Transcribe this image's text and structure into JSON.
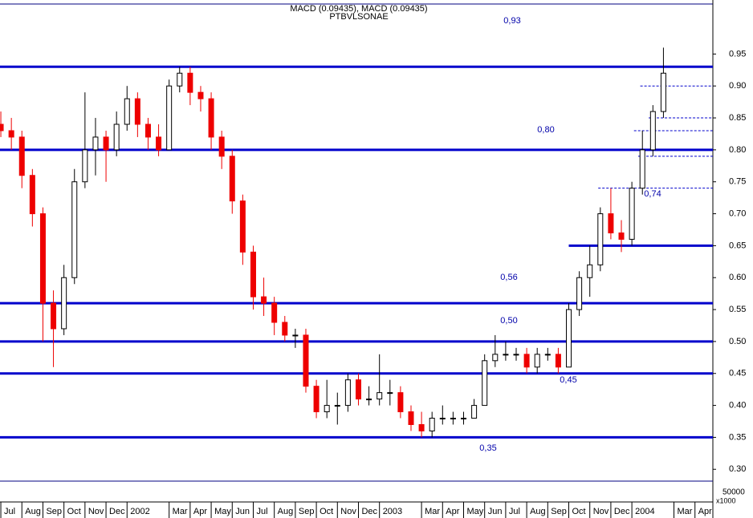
{
  "chart_data": {
    "type": "candlestick",
    "title": "MACD (0.09435), MACD (0.09435)",
    "subtitle": "PTBVLSONAE",
    "xlim": [
      -0.04,
      33.85
    ],
    "ylim": [
      0.284,
      1.022
    ],
    "yticks": [
      0.95,
      {
        "value": 0.9,
        "label": "0.90"
      },
      0.85,
      {
        "value": 0.8,
        "label": "0.80"
      },
      0.75,
      {
        "value": 0.7,
        "label": "0.70"
      },
      0.65,
      {
        "value": 0.6,
        "label": "0.60"
      },
      0.55,
      {
        "value": 0.5,
        "label": "0.50"
      },
      0.45,
      {
        "value": 0.4,
        "label": "0.40"
      },
      0.35,
      {
        "value": 0.3,
        "label": "0.30"
      }
    ],
    "xticks": [
      {
        "value": 0,
        "label": "Jul"
      },
      {
        "value": 1,
        "label": "Aug"
      },
      {
        "value": 2,
        "label": "Sep"
      },
      {
        "value": 3,
        "label": "Oct"
      },
      {
        "value": 4,
        "label": "Nov"
      },
      {
        "value": 5,
        "label": "Dec"
      },
      {
        "value": 6,
        "label": "2002"
      },
      {
        "value": 8,
        "label": "Mar"
      },
      {
        "value": 9,
        "label": "Apr"
      },
      {
        "value": 10,
        "label": "May"
      },
      {
        "value": 11,
        "label": "Jun"
      },
      {
        "value": 12,
        "label": "Jul"
      },
      {
        "value": 13,
        "label": "Aug"
      },
      {
        "value": 14,
        "label": "Sep"
      },
      {
        "value": 15,
        "label": "Oct"
      },
      {
        "value": 16,
        "label": "Nov"
      },
      {
        "value": 17,
        "label": "Dec"
      },
      {
        "value": 18,
        "label": "2003"
      },
      {
        "value": 20,
        "label": "Mar"
      },
      {
        "value": 21,
        "label": "Apr"
      },
      {
        "value": 22,
        "label": "May"
      },
      {
        "value": 23,
        "label": "Jun"
      },
      {
        "value": 24,
        "label": "Jul"
      },
      {
        "value": 25,
        "label": "Aug"
      },
      {
        "value": 26,
        "label": "Sep"
      },
      {
        "value": 27,
        "label": "Oct"
      },
      {
        "value": 28,
        "label": "Nov"
      },
      {
        "value": 29,
        "label": "Dec"
      },
      {
        "value": 30,
        "label": "2004"
      },
      {
        "value": 32,
        "label": "Mar"
      },
      {
        "value": 33,
        "label": "Apr"
      }
    ],
    "up_color": "#ffffff",
    "down_color": "#ee0000",
    "x": [
      0,
      0.5,
      1,
      1.5,
      2,
      2.5,
      3,
      3.5,
      4,
      4.5,
      5,
      5.5,
      6,
      6.5,
      7,
      7.5,
      8,
      8.5,
      9,
      9.5,
      10,
      10.5,
      11,
      11.5,
      12,
      12.5,
      13,
      13.5,
      14,
      14.5,
      15,
      15.5,
      16,
      16.5,
      17,
      17.5,
      18,
      18.5,
      19,
      19.5,
      20,
      20.5,
      21,
      21.5,
      22,
      22.5,
      23,
      23.5,
      24,
      24.5,
      25,
      25.5,
      26,
      26.5,
      27,
      27.5,
      28,
      28.5,
      29,
      29.5,
      30,
      30.5,
      31,
      31.5
    ],
    "open": [
      0.84,
      0.83,
      0.82,
      0.76,
      0.7,
      0.56,
      0.52,
      0.6,
      0.75,
      0.8,
      0.82,
      0.8,
      0.84,
      0.88,
      0.84,
      0.82,
      0.8,
      0.9,
      0.92,
      0.89,
      0.88,
      0.82,
      0.79,
      0.72,
      0.64,
      0.57,
      0.56,
      0.53,
      0.51,
      0.51,
      0.43,
      0.39,
      0.4,
      0.4,
      0.44,
      0.41,
      0.41,
      0.42,
      0.42,
      0.39,
      0.37,
      0.36,
      0.38,
      0.38,
      0.38,
      0.38,
      0.4,
      0.47,
      0.48,
      0.48,
      0.48,
      0.46,
      0.48,
      0.48,
      0.46,
      0.55,
      0.6,
      0.62,
      0.7,
      0.67,
      0.66,
      0.74,
      0.8,
      0.86
    ],
    "high": [
      0.86,
      0.85,
      0.83,
      0.77,
      0.71,
      0.58,
      0.62,
      0.77,
      0.89,
      0.85,
      0.83,
      0.86,
      0.9,
      0.89,
      0.85,
      0.84,
      0.91,
      0.93,
      0.93,
      0.9,
      0.89,
      0.83,
      0.8,
      0.73,
      0.65,
      0.6,
      0.57,
      0.54,
      0.52,
      0.52,
      0.44,
      0.44,
      0.42,
      0.45,
      0.45,
      0.43,
      0.48,
      0.44,
      0.43,
      0.4,
      0.39,
      0.39,
      0.4,
      0.39,
      0.39,
      0.41,
      0.48,
      0.51,
      0.5,
      0.49,
      0.49,
      0.49,
      0.49,
      0.49,
      0.56,
      0.61,
      0.65,
      0.71,
      0.74,
      0.69,
      0.75,
      0.83,
      0.87,
      0.96
    ],
    "low": [
      0.82,
      0.8,
      0.74,
      0.68,
      0.5,
      0.46,
      0.51,
      0.59,
      0.74,
      0.76,
      0.75,
      0.79,
      0.83,
      0.82,
      0.8,
      0.79,
      0.8,
      0.89,
      0.87,
      0.86,
      0.8,
      0.77,
      0.7,
      0.62,
      0.55,
      0.54,
      0.51,
      0.5,
      0.49,
      0.42,
      0.38,
      0.38,
      0.37,
      0.39,
      0.4,
      0.4,
      0.4,
      0.4,
      0.38,
      0.36,
      0.35,
      0.35,
      0.37,
      0.37,
      0.37,
      0.38,
      0.4,
      0.46,
      0.47,
      0.47,
      0.45,
      0.45,
      0.47,
      0.45,
      0.46,
      0.54,
      0.57,
      0.61,
      0.66,
      0.64,
      0.65,
      0.73,
      0.79,
      0.85
    ],
    "close": [
      0.83,
      0.82,
      0.76,
      0.7,
      0.56,
      0.52,
      0.6,
      0.75,
      0.8,
      0.82,
      0.8,
      0.84,
      0.88,
      0.84,
      0.82,
      0.8,
      0.9,
      0.92,
      0.89,
      0.88,
      0.82,
      0.79,
      0.72,
      0.64,
      0.57,
      0.56,
      0.53,
      0.51,
      0.51,
      0.43,
      0.39,
      0.4,
      0.4,
      0.44,
      0.41,
      0.41,
      0.42,
      0.42,
      0.39,
      0.37,
      0.36,
      0.38,
      0.38,
      0.38,
      0.38,
      0.4,
      0.47,
      0.48,
      0.48,
      0.48,
      0.46,
      0.48,
      0.48,
      0.46,
      0.55,
      0.6,
      0.62,
      0.7,
      0.67,
      0.66,
      0.74,
      0.8,
      0.86,
      0.92
    ],
    "levels": [
      {
        "y": 0.93,
        "label": "0,93"
      },
      {
        "y": 0.8,
        "label": "0,80"
      },
      {
        "y": 0.65,
        "x_start": 27
      },
      {
        "y": 0.56,
        "label": "0,56"
      },
      {
        "y": 0.5,
        "label": "0,50"
      },
      {
        "y": 0.45,
        "label": "0,45"
      },
      {
        "y": 0.35,
        "label": "0,35"
      }
    ],
    "level_color": "#0000cc",
    "dashed_levels": [
      {
        "y": 0.9,
        "x_start": 30.4
      },
      {
        "y": 0.85,
        "x_start": 30.8
      },
      {
        "y": 0.83,
        "x_start": 30.1
      },
      {
        "y": 0.79,
        "x_start": 30.3
      },
      {
        "y": 0.74,
        "x_start": 28.4,
        "label": "0,74"
      }
    ],
    "subpanel_labels": [
      "50000",
      "x1000"
    ]
  }
}
